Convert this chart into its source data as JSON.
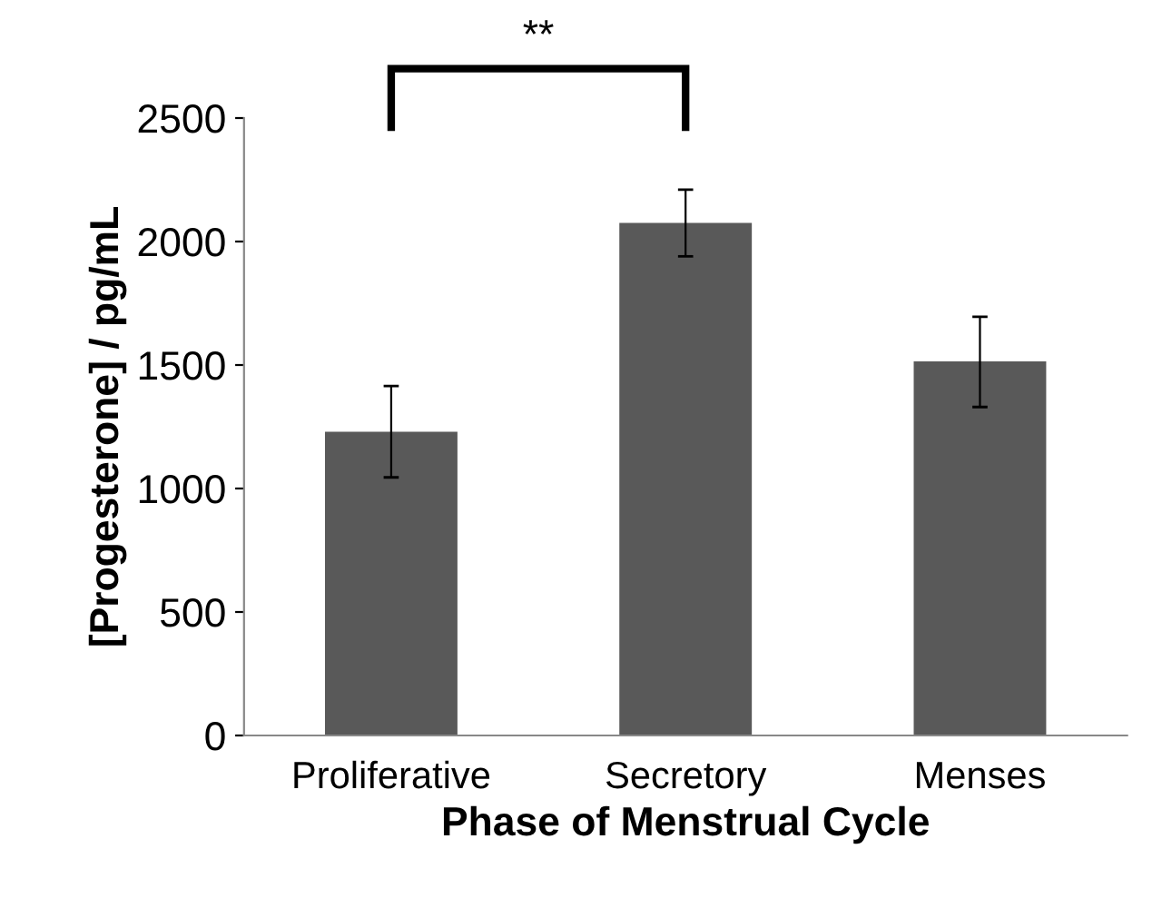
{
  "chart_data": {
    "type": "bar",
    "xlabel": "Phase of Menstrual Cycle",
    "ylabel": "[Progesterone] / pg/mL",
    "categories": [
      "Proliferative",
      "Secretory",
      "Menses"
    ],
    "values": [
      1230,
      2075,
      1515
    ],
    "errors": [
      [
        1045,
        1415
      ],
      [
        1940,
        2210
      ],
      [
        1330,
        1695
      ]
    ],
    "color": "#595959",
    "ylim": [
      0,
      2500
    ],
    "yticks": [
      0,
      500,
      1000,
      1500,
      2000,
      2500
    ],
    "annotations": [
      "**"
    ],
    "grid": false,
    "legend": false
  }
}
